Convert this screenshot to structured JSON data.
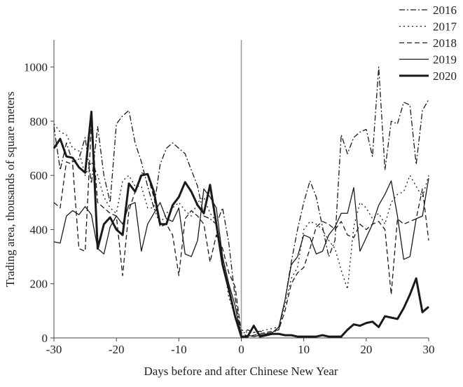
{
  "chart_data": {
    "type": "line",
    "x_label": "Days before and after Chinese New Year",
    "y_label": "Trading area, thousands of square meters",
    "xlim": [
      -30,
      30
    ],
    "ylim": [
      0,
      1100
    ],
    "xticks": [
      -30,
      -20,
      -10,
      0,
      10,
      20,
      30
    ],
    "yticks": [
      0,
      200,
      400,
      600,
      800,
      1000
    ],
    "zero_line": true,
    "x": [
      -30,
      -29,
      -28,
      -27,
      -26,
      -25,
      -24,
      -23,
      -22,
      -21,
      -20,
      -19,
      -18,
      -17,
      -16,
      -15,
      -14,
      -13,
      -12,
      -11,
      -10,
      -9,
      -8,
      -7,
      -6,
      -5,
      -4,
      -3,
      -2,
      -1,
      0,
      1,
      2,
      3,
      4,
      5,
      6,
      7,
      8,
      9,
      10,
      11,
      12,
      13,
      14,
      15,
      16,
      17,
      18,
      19,
      20,
      21,
      22,
      23,
      24,
      25,
      26,
      27,
      28,
      29,
      30
    ],
    "series": [
      {
        "name": "2016",
        "color": "#1a1a1a",
        "style": "dashdot",
        "width": 1.3,
        "values": [
          780,
          620,
          720,
          650,
          660,
          740,
          570,
          780,
          600,
          500,
          790,
          820,
          840,
          720,
          650,
          560,
          480,
          640,
          700,
          720,
          700,
          680,
          620,
          560,
          450,
          440,
          420,
          480,
          350,
          150,
          10,
          30,
          20,
          25,
          15,
          20,
          30,
          140,
          280,
          400,
          500,
          580,
          520,
          410,
          300,
          360,
          750,
          680,
          740,
          760,
          770,
          670,
          1000,
          620,
          800,
          790,
          870,
          860,
          640,
          840,
          880
        ]
      },
      {
        "name": "2017",
        "color": "#1a1a1a",
        "style": "dotted",
        "width": 1.3,
        "values": [
          790,
          760,
          750,
          700,
          690,
          600,
          650,
          600,
          520,
          480,
          460,
          580,
          600,
          560,
          560,
          480,
          480,
          420,
          460,
          480,
          500,
          470,
          450,
          500,
          520,
          460,
          430,
          300,
          150,
          80,
          30,
          20,
          20,
          25,
          30,
          35,
          40,
          120,
          220,
          260,
          400,
          430,
          420,
          400,
          360,
          330,
          250,
          180,
          410,
          500,
          480,
          440,
          460,
          420,
          500,
          530,
          540,
          600,
          560,
          520,
          600
        ]
      },
      {
        "name": "2018",
        "color": "#1a1a1a",
        "style": "dashed",
        "width": 1.3,
        "values": [
          500,
          480,
          650,
          640,
          330,
          320,
          790,
          500,
          480,
          460,
          450,
          230,
          470,
          540,
          610,
          600,
          520,
          410,
          420,
          380,
          230,
          440,
          470,
          450,
          420,
          280,
          380,
          330,
          240,
          190,
          20,
          5,
          10,
          15,
          20,
          25,
          30,
          100,
          200,
          240,
          260,
          330,
          410,
          430,
          420,
          400,
          430,
          380,
          370,
          420,
          400,
          420,
          430,
          400,
          160,
          440,
          420,
          430,
          440,
          550,
          360
        ]
      },
      {
        "name": "2019",
        "color": "#1a1a1a",
        "style": "solid",
        "width": 1.3,
        "values": [
          355,
          350,
          450,
          470,
          455,
          485,
          455,
          330,
          310,
          410,
          450,
          420,
          490,
          500,
          320,
          420,
          460,
          500,
          440,
          430,
          480,
          310,
          300,
          360,
          550,
          520,
          480,
          300,
          200,
          120,
          0,
          10,
          5,
          10,
          15,
          20,
          40,
          140,
          270,
          300,
          380,
          370,
          310,
          320,
          380,
          410,
          460,
          460,
          555,
          320,
          370,
          420,
          490,
          530,
          580,
          450,
          290,
          300,
          440,
          450,
          590
        ]
      },
      {
        "name": "2020",
        "color": "#1a1a1a",
        "style": "solid",
        "width": 3,
        "values": [
          700,
          735,
          670,
          665,
          630,
          610,
          835,
          330,
          420,
          445,
          400,
          380,
          570,
          540,
          600,
          605,
          540,
          420,
          420,
          490,
          520,
          575,
          540,
          490,
          460,
          565,
          420,
          270,
          180,
          80,
          5,
          5,
          45,
          5,
          10,
          15,
          15,
          10,
          10,
          5,
          5,
          5,
          5,
          10,
          5,
          5,
          5,
          30,
          50,
          45,
          55,
          60,
          40,
          80,
          75,
          70,
          110,
          160,
          220,
          95,
          115
        ]
      }
    ]
  }
}
